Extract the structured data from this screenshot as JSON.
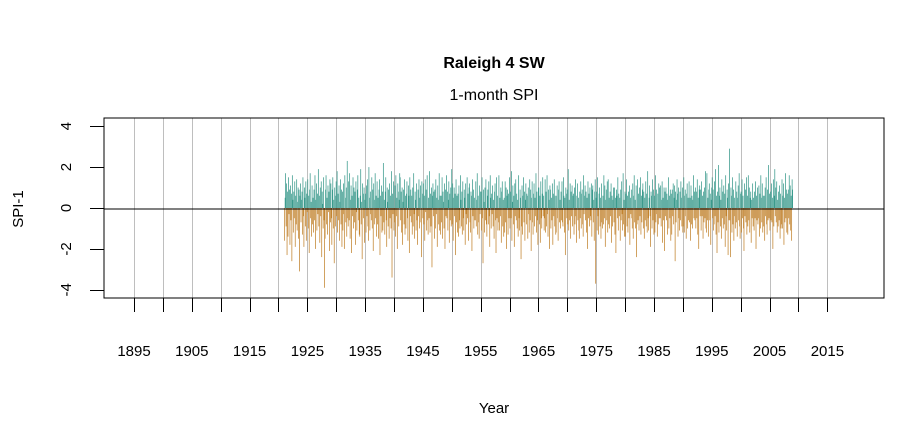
{
  "chart_data": {
    "type": "bar",
    "title": "Raleigh 4 SW",
    "subtitle": "1-month SPI",
    "xlabel": "Year",
    "ylabel": "SPI-1",
    "xlim": [
      1889.8,
      2024.8
    ],
    "ylim": [
      -4.4,
      4.4
    ],
    "x_ticks": [
      1895,
      1900,
      1905,
      1910,
      1915,
      1920,
      1925,
      1930,
      1935,
      1940,
      1945,
      1950,
      1955,
      1960,
      1965,
      1970,
      1975,
      1980,
      1985,
      1990,
      1995,
      2000,
      2005,
      2010,
      2015
    ],
    "x_tick_labels": [
      "1895",
      "1905",
      "1915",
      "1925",
      "1935",
      "1945",
      "1955",
      "1965",
      "1975",
      "1985",
      "1995",
      "2005",
      "2015"
    ],
    "y_ticks": [
      -4,
      -2,
      0,
      2,
      4
    ],
    "y_tick_labels": [
      "-4",
      "-2",
      "0",
      "2",
      "4"
    ],
    "grid": "vertical",
    "colors": {
      "positive": "#3a9a8c",
      "negative": "#c2832e",
      "grid": "#bebebe"
    },
    "start": "1921-01",
    "frequency": "monthly",
    "values": [
      -1.6,
      0.5,
      1.7,
      -0.9,
      1.2,
      -2.3,
      0.8,
      -1.4,
      1.5,
      -0.3,
      0.9,
      -1.8,
      1.1,
      -0.6,
      0.7,
      -2.6,
      1.6,
      0.4,
      -1.2,
      0.8,
      -0.5,
      1.3,
      -1.9,
      0.6,
      -0.8,
      1.4,
      -1.1,
      0.3,
      1.0,
      -1.5,
      0.9,
      -3.1,
      0.6,
      1.2,
      -0.7,
      0.4,
      0.8,
      -1.3,
      1.5,
      -0.4,
      -1.9,
      1.0,
      0.5,
      -0.9,
      1.3,
      -1.6,
      0.7,
      -0.2,
      1.4,
      -1.0,
      0.6,
      -2.2,
      0.9,
      1.7,
      -0.5,
      0.3,
      -1.4,
      1.1,
      -0.8,
      0.5,
      -1.2,
      0.9,
      -0.6,
      1.6,
      -2.0,
      0.4,
      1.2,
      -1.1,
      0.7,
      -0.3,
      1.9,
      -0.9,
      0.6,
      -1.7,
      1.0,
      -0.4,
      1.3,
      -2.4,
      0.8,
      0.2,
      -1.0,
      1.5,
      -0.6,
      -3.9,
      -1.5,
      0.9,
      1.6,
      -0.8,
      0.5,
      -1.3,
      1.1,
      -0.2,
      0.8,
      -2.1,
      1.4,
      -0.7,
      1.2,
      -0.5,
      -1.8,
      0.9,
      1.5,
      -1.0,
      0.4,
      -2.7,
      1.0,
      0.6,
      -0.9,
      1.3,
      -0.4,
      1.8,
      -1.2,
      0.7,
      -0.6,
      1.1,
      -1.6,
      0.3,
      1.4,
      -0.8,
      0.9,
      -1.9,
      0.8,
      -1.1,
      1.2,
      -0.3,
      -2.0,
      1.6,
      0.5,
      -0.7,
      1.0,
      -1.4,
      2.3,
      -0.5,
      -0.9,
      1.3,
      -0.6,
      1.7,
      -1.5,
      0.4,
      1.1,
      -2.2,
      0.6,
      -0.4,
      1.5,
      -1.0,
      1.0,
      -0.7,
      0.8,
      -1.8,
      1.3,
      -0.2,
      -1.1,
      0.9,
      1.6,
      -0.6,
      0.5,
      -1.3,
      -1.4,
      0.6,
      1.9,
      -0.8,
      0.3,
      -2.5,
      1.2,
      0.7,
      -0.5,
      1.0,
      -1.7,
      0.4,
      0.7,
      -1.2,
      1.1,
      -0.4,
      1.4,
      -0.9,
      -1.6,
      2.0,
      0.5,
      -1.1,
      0.8,
      -0.3,
      -0.6,
      1.5,
      -1.0,
      0.9,
      -2.1,
      1.2,
      0.4,
      -0.8,
      1.7,
      -0.5,
      0.6,
      -1.4,
      1.3,
      -0.8,
      0.5,
      -1.5,
      0.9,
      1.4,
      -2.3,
      0.6,
      -0.4,
      1.1,
      -1.2,
      0.8,
      -1.1,
      2.2,
      -0.7,
      0.4,
      -1.3,
      0.8,
      1.5,
      -0.6,
      -1.9,
      1.0,
      0.3,
      -0.9,
      0.9,
      -1.5,
      1.2,
      -0.5,
      0.6,
      -1.0,
      1.8,
      -3.4,
      0.7,
      -0.3,
      1.3,
      -1.1,
      -0.7,
      1.1,
      -1.4,
      1.6,
      -0.4,
      0.5,
      -2.0,
      1.2,
      0.8,
      -0.9,
      0.4,
      1.7,
      1.5,
      -0.6,
      0.8,
      -1.2,
      1.0,
      -1.8,
      0.3,
      0.9,
      -0.8,
      1.4,
      -1.3,
      0.6,
      -1.0,
      0.7,
      1.3,
      -0.5,
      -1.6,
      1.1,
      0.6,
      -2.2,
      1.5,
      -0.4,
      0.9,
      -0.7,
      0.6,
      -1.3,
      1.0,
      -0.9,
      1.7,
      -0.3,
      -1.5,
      0.8,
      0.4,
      -1.1,
      1.2,
      -0.6,
      -1.8,
      0.9,
      -0.4,
      1.4,
      -1.0,
      0.5,
      1.1,
      -0.7,
      -2.4,
      1.3,
      0.7,
      -0.5,
      1.2,
      -0.8,
      0.6,
      -1.6,
      1.4,
      -0.2,
      0.9,
      -1.1,
      1.6,
      -0.6,
      -1.3,
      0.5,
      -0.5,
      1.8,
      -1.2,
      0.7,
      -0.9,
      1.0,
      -2.9,
      0.6,
      1.2,
      -0.4,
      0.8,
      -1.5,
      0.9,
      -1.0,
      1.4,
      -0.3,
      0.5,
      -1.9,
      1.1,
      0.4,
      -0.8,
      1.7,
      -1.1,
      0.6,
      -1.3,
      0.6,
      -0.7,
      1.5,
      -1.5,
      0.8,
      0.3,
      -1.0,
      1.2,
      -2.0,
      0.9,
      -0.4,
      1.6,
      -0.5,
      0.8,
      -1.1,
      0.4,
      1.3,
      -1.7,
      0.7,
      -0.6,
      1.0,
      -0.9,
      1.9,
      -0.8,
      1.2,
      -1.6,
      0.5,
      1.0,
      -0.4,
      0.7,
      -2.3,
      1.4,
      -0.7,
      0.6,
      -1.2,
      0.7,
      -1.4,
      1.1,
      -0.6,
      -1.0,
      1.6,
      0.4,
      -0.9,
      0.8,
      -1.3,
      1.3,
      -0.5,
      -1.1,
      0.9,
      0.5,
      -1.8,
      1.2,
      -0.3,
      -0.8,
      1.5,
      -0.5,
      0.7,
      -1.6,
      1.0,
      1.2,
      -0.7,
      -1.2,
      0.8,
      0.6,
      -2.1,
      1.4,
      -0.4,
      0.9,
      -1.0,
      0.5,
      -0.6,
      -0.6,
      1.3,
      -0.9,
      0.4,
      1.7,
      -1.3,
      0.6,
      -0.7,
      -1.5,
      1.1,
      -0.3,
      0.8,
      0.8,
      -1.1,
      1.5,
      -0.5,
      -2.7,
      0.9,
      0.3,
      -1.2,
      1.0,
      -0.6,
      1.4,
      -0.8,
      -1.4,
      0.6,
      0.9,
      -0.8,
      1.3,
      -0.4,
      -1.9,
      1.6,
      0.5,
      -1.0,
      0.7,
      -0.3,
      1.1,
      -0.9,
      0.4,
      -1.5,
      0.8,
      1.2,
      -0.6,
      -2.2,
      1.5,
      -0.5,
      0.6,
      -1.1,
      -0.7,
      1.6,
      -1.1,
      0.5,
      -0.4,
      1.0,
      -1.7,
      0.8,
      1.3,
      -0.9,
      0.4,
      -1.4,
      0.5,
      -1.2,
      1.3,
      -0.7,
      1.0,
      -2.0,
      0.6,
      0.9,
      -1.3,
      0.7,
      -0.5,
      1.5,
      -1.0,
      0.8,
      -0.5,
      1.8,
      -1.6,
      0.3,
      1.1,
      -0.8,
      0.6,
      -1.9,
      1.2,
      -0.4,
      1.4,
      -0.6,
      0.7,
      -1.0,
      0.4,
      -1.4,
      1.6,
      -0.5,
      -1.1,
      0.9,
      0.5,
      -2.5,
      -0.9,
      1.1,
      -1.3,
      0.6,
      1.5,
      -0.7,
      0.8,
      -1.6,
      0.4,
      1.2,
      -0.8,
      0.7,
      0.6,
      -1.5,
      1.0,
      -0.3,
      -1.2,
      1.4,
      -0.6,
      0.9,
      -2.1,
      0.5,
      1.3,
      -0.7,
      -1.3,
      0.7,
      1.2,
      -0.9,
      0.5,
      -0.4,
      1.7,
      -1.2,
      0.8,
      -0.6,
      -1.8,
      1.0,
      1.0,
      -0.8,
      0.6,
      -1.7,
      1.3,
      -0.5,
      -1.0,
      0.7,
      1.5,
      -0.4,
      0.6,
      -1.1,
      -0.5,
      1.4,
      -1.2,
      0.8,
      -0.9,
      1.6,
      -0.3,
      -1.4,
      0.9,
      0.4,
      -2.0,
      1.1,
      0.9,
      -1.0,
      0.5,
      -0.6,
      1.2,
      -1.8,
      0.7,
      -0.4,
      1.4,
      -0.9,
      0.6,
      -1.3,
      -1.2,
      0.6,
      1.1,
      -0.5,
      -1.6,
      0.9,
      1.3,
      -0.7,
      0.4,
      -1.0,
      0.8,
      -0.6,
      1.3,
      -0.7,
      -0.9,
      1.5,
      0.6,
      -1.2,
      0.5,
      -2.3,
      1.0,
      0.7,
      -0.5,
      0.9,
      -0.8,
      1.9,
      -1.1,
      0.4,
      -0.6,
      1.2,
      -1.5,
      0.8,
      -0.4,
      1.1,
      -0.9,
      0.6,
      0.7,
      -1.3,
      1.0,
      -0.8,
      1.4,
      -0.4,
      -1.7,
      0.6,
      1.2,
      -0.6,
      0.5,
      -1.1,
      -1.5,
      0.8,
      -0.5,
      1.3,
      -1.0,
      0.7,
      0.9,
      -0.8,
      -1.4,
      1.6,
      -0.3,
      0.6,
      1.1,
      -0.6,
      0.8,
      -1.2,
      0.5,
      -2.0,
      1.3,
      -0.5,
      0.7,
      -0.9,
      1.0,
      -0.4,
      -0.6,
      1.2,
      -1.4,
      0.9,
      1.1,
      -0.7,
      0.4,
      -1.6,
      0.8,
      1.4,
      -3.7,
      0.5,
      0.8,
      -1.1,
      1.5,
      -0.4,
      -1.3,
      0.7,
      1.0,
      -0.9,
      0.5,
      -1.5,
      1.2,
      -0.7,
      -1.0,
      0.6,
      -0.8,
      1.6,
      -0.5,
      1.1,
      -1.9,
      0.4,
      0.9,
      -0.6,
      1.3,
      -1.2,
      1.4,
      -0.8,
      0.5,
      -1.0,
      0.8,
      -0.4,
      1.2,
      -1.7,
      0.6,
      -0.9,
      0.4,
      1.0,
      -0.7,
      1.0,
      -1.3,
      0.5,
      -2.2,
      0.9,
      0.6,
      -0.5,
      1.5,
      -1.1,
      0.7,
      -0.4,
      0.5,
      -1.6,
      0.9,
      -0.6,
      1.3,
      -0.3,
      -1.1,
      1.7,
      -0.8,
      0.4,
      -1.4,
      0.8,
      -1.4,
      0.7,
      1.4,
      -0.9,
      0.6,
      -1.2,
      0.8,
      -0.5,
      1.1,
      -1.8,
      0.5,
      -0.3,
      0.9,
      -0.5,
      -1.0,
      1.2,
      -1.5,
      0.6,
      1.6,
      -0.7,
      0.4,
      -1.0,
      1.1,
      -2.4,
      -0.8,
      1.4,
      -0.6,
      0.7,
      -1.1,
      1.0,
      -0.4,
      1.5,
      -1.3,
      0.6,
      -0.7,
      0.9,
      1.2,
      -1.0,
      0.8,
      -1.5,
      0.5,
      -0.6,
      1.3,
      -0.9,
      0.7,
      -1.2,
      1.8,
      -0.5,
      -1.1,
      0.5,
      1.1,
      -0.4,
      -1.9,
      0.8,
      0.6,
      -1.0,
      1.4,
      -0.6,
      0.9,
      -1.3,
      0.6,
      -1.2,
      1.6,
      -0.7,
      0.9,
      -0.3,
      -1.4,
      0.7,
      -0.8,
      1.2,
      -0.5,
      1.0,
      -0.5,
      1.1,
      -0.9,
      0.4,
      1.3,
      -1.7,
      0.5,
      -0.6,
      1.0,
      -2.1,
      0.8,
      -0.4,
      1.0,
      -0.6,
      0.7,
      -1.3,
      0.4,
      1.5,
      -1.0,
      0.6,
      -0.5,
      0.9,
      -1.6,
      0.7,
      -1.3,
      0.9,
      -0.4,
      1.2,
      -0.8,
      0.5,
      1.1,
      -2.6,
      0.8,
      -0.7,
      0.4,
      1.4,
      0.7,
      -1.4,
      1.0,
      -0.5,
      -1.1,
      0.8,
      -0.6,
      1.3,
      0.5,
      -0.9,
      1.0,
      -1.2,
      -0.9,
      1.5,
      -1.2,
      0.6,
      0.9,
      -0.4,
      -1.5,
      0.7,
      1.2,
      -1.0,
      0.5,
      -0.6,
      1.3,
      -0.7,
      0.5,
      -1.6,
      1.1,
      -0.8,
      0.6,
      -1.0,
      0.4,
      1.6,
      -0.5,
      0.8,
      -0.6,
      1.0,
      -1.0,
      0.8,
      -0.5,
      1.4,
      -1.3,
      0.5,
      -2.0,
      0.9,
      1.1,
      -0.4,
      0.9,
      -1.1,
      1.3,
      -0.4,
      0.6,
      -1.5,
      0.8,
      -0.7,
      1.0,
      -0.5,
      1.8,
      -1.0,
      -1.2,
      1.7,
      -0.6,
      0.5,
      -1.4,
      0.9,
      1.2,
      -0.6,
      0.7,
      -1.8,
      0.4,
      1.0,
      1.5,
      -0.5,
      0.9,
      -1.1,
      -0.8,
      1.3,
      -0.4,
      1.9,
      -1.3,
      0.6,
      -2.2,
      0.8,
      -0.7,
      2.1,
      -1.2,
      0.6,
      1.0,
      -0.9,
      0.4,
      -1.5,
      1.4,
      -0.5,
      0.8,
      -1.0,
      1.1,
      -0.8,
      0.7,
      -1.9,
      1.6,
      -0.4,
      -1.1,
      0.9,
      0.5,
      -2.3,
      1.2,
      -0.6,
      2.9,
      -0.6,
      -2.4,
      1.0,
      0.6,
      -1.2,
      1.5,
      -0.8,
      0.9,
      -1.6,
      0.5,
      -0.4,
      -1.0,
      1.3,
      -0.7,
      0.8,
      -1.4,
      0.5,
      1.1,
      -0.6,
      1.7,
      -0.9,
      -1.5,
      0.7,
      0.8,
      -1.2,
      1.4,
      -0.5,
      0.6,
      -1.0,
      -2.1,
      1.2,
      -0.4,
      0.9,
      -0.7,
      1.5,
      -1.3,
      0.6,
      -0.9,
      1.6,
      -0.6,
      1.0,
      -1.2,
      0.5,
      0.8,
      -1.7,
      0.4,
      -0.5,
      1.2,
      -0.9,
      0.5,
      -1.1,
      0.8,
      -0.5,
      1.3,
      -2.0,
      0.6,
      -0.6,
      1.0,
      -0.8,
      -0.5,
      1.1,
      -1.4,
      0.7,
      -1.0,
      1.6,
      0.5,
      -0.7,
      1.2,
      -1.2,
      0.6,
      -0.9,
      0.6,
      -1.6,
      1.0,
      -0.4,
      1.5,
      -0.8,
      -1.3,
      0.9,
      -0.6,
      2.1,
      -0.5,
      0.7,
      -1.1,
      0.8,
      -0.6,
      1.2,
      -0.7,
      0.5,
      -2.0,
      1.4,
      -0.9,
      0.6,
      1.9,
      -0.4,
      1.0,
      -0.7,
      1.3,
      -1.2,
      0.4,
      -0.9,
      0.8,
      -0.6,
      1.1,
      -1.5,
      0.7,
      -1.0,
      -0.8,
      1.4,
      -1.0,
      0.6,
      1.2,
      -1.8,
      0.5,
      -0.7,
      1.7,
      -0.5,
      0.9,
      -1.2,
      0.7,
      -1.3,
      0.9,
      -0.5,
      1.6,
      -0.8,
      1.1,
      -1.1,
      0.6,
      -1.6,
      1.4,
      0.9
    ]
  }
}
